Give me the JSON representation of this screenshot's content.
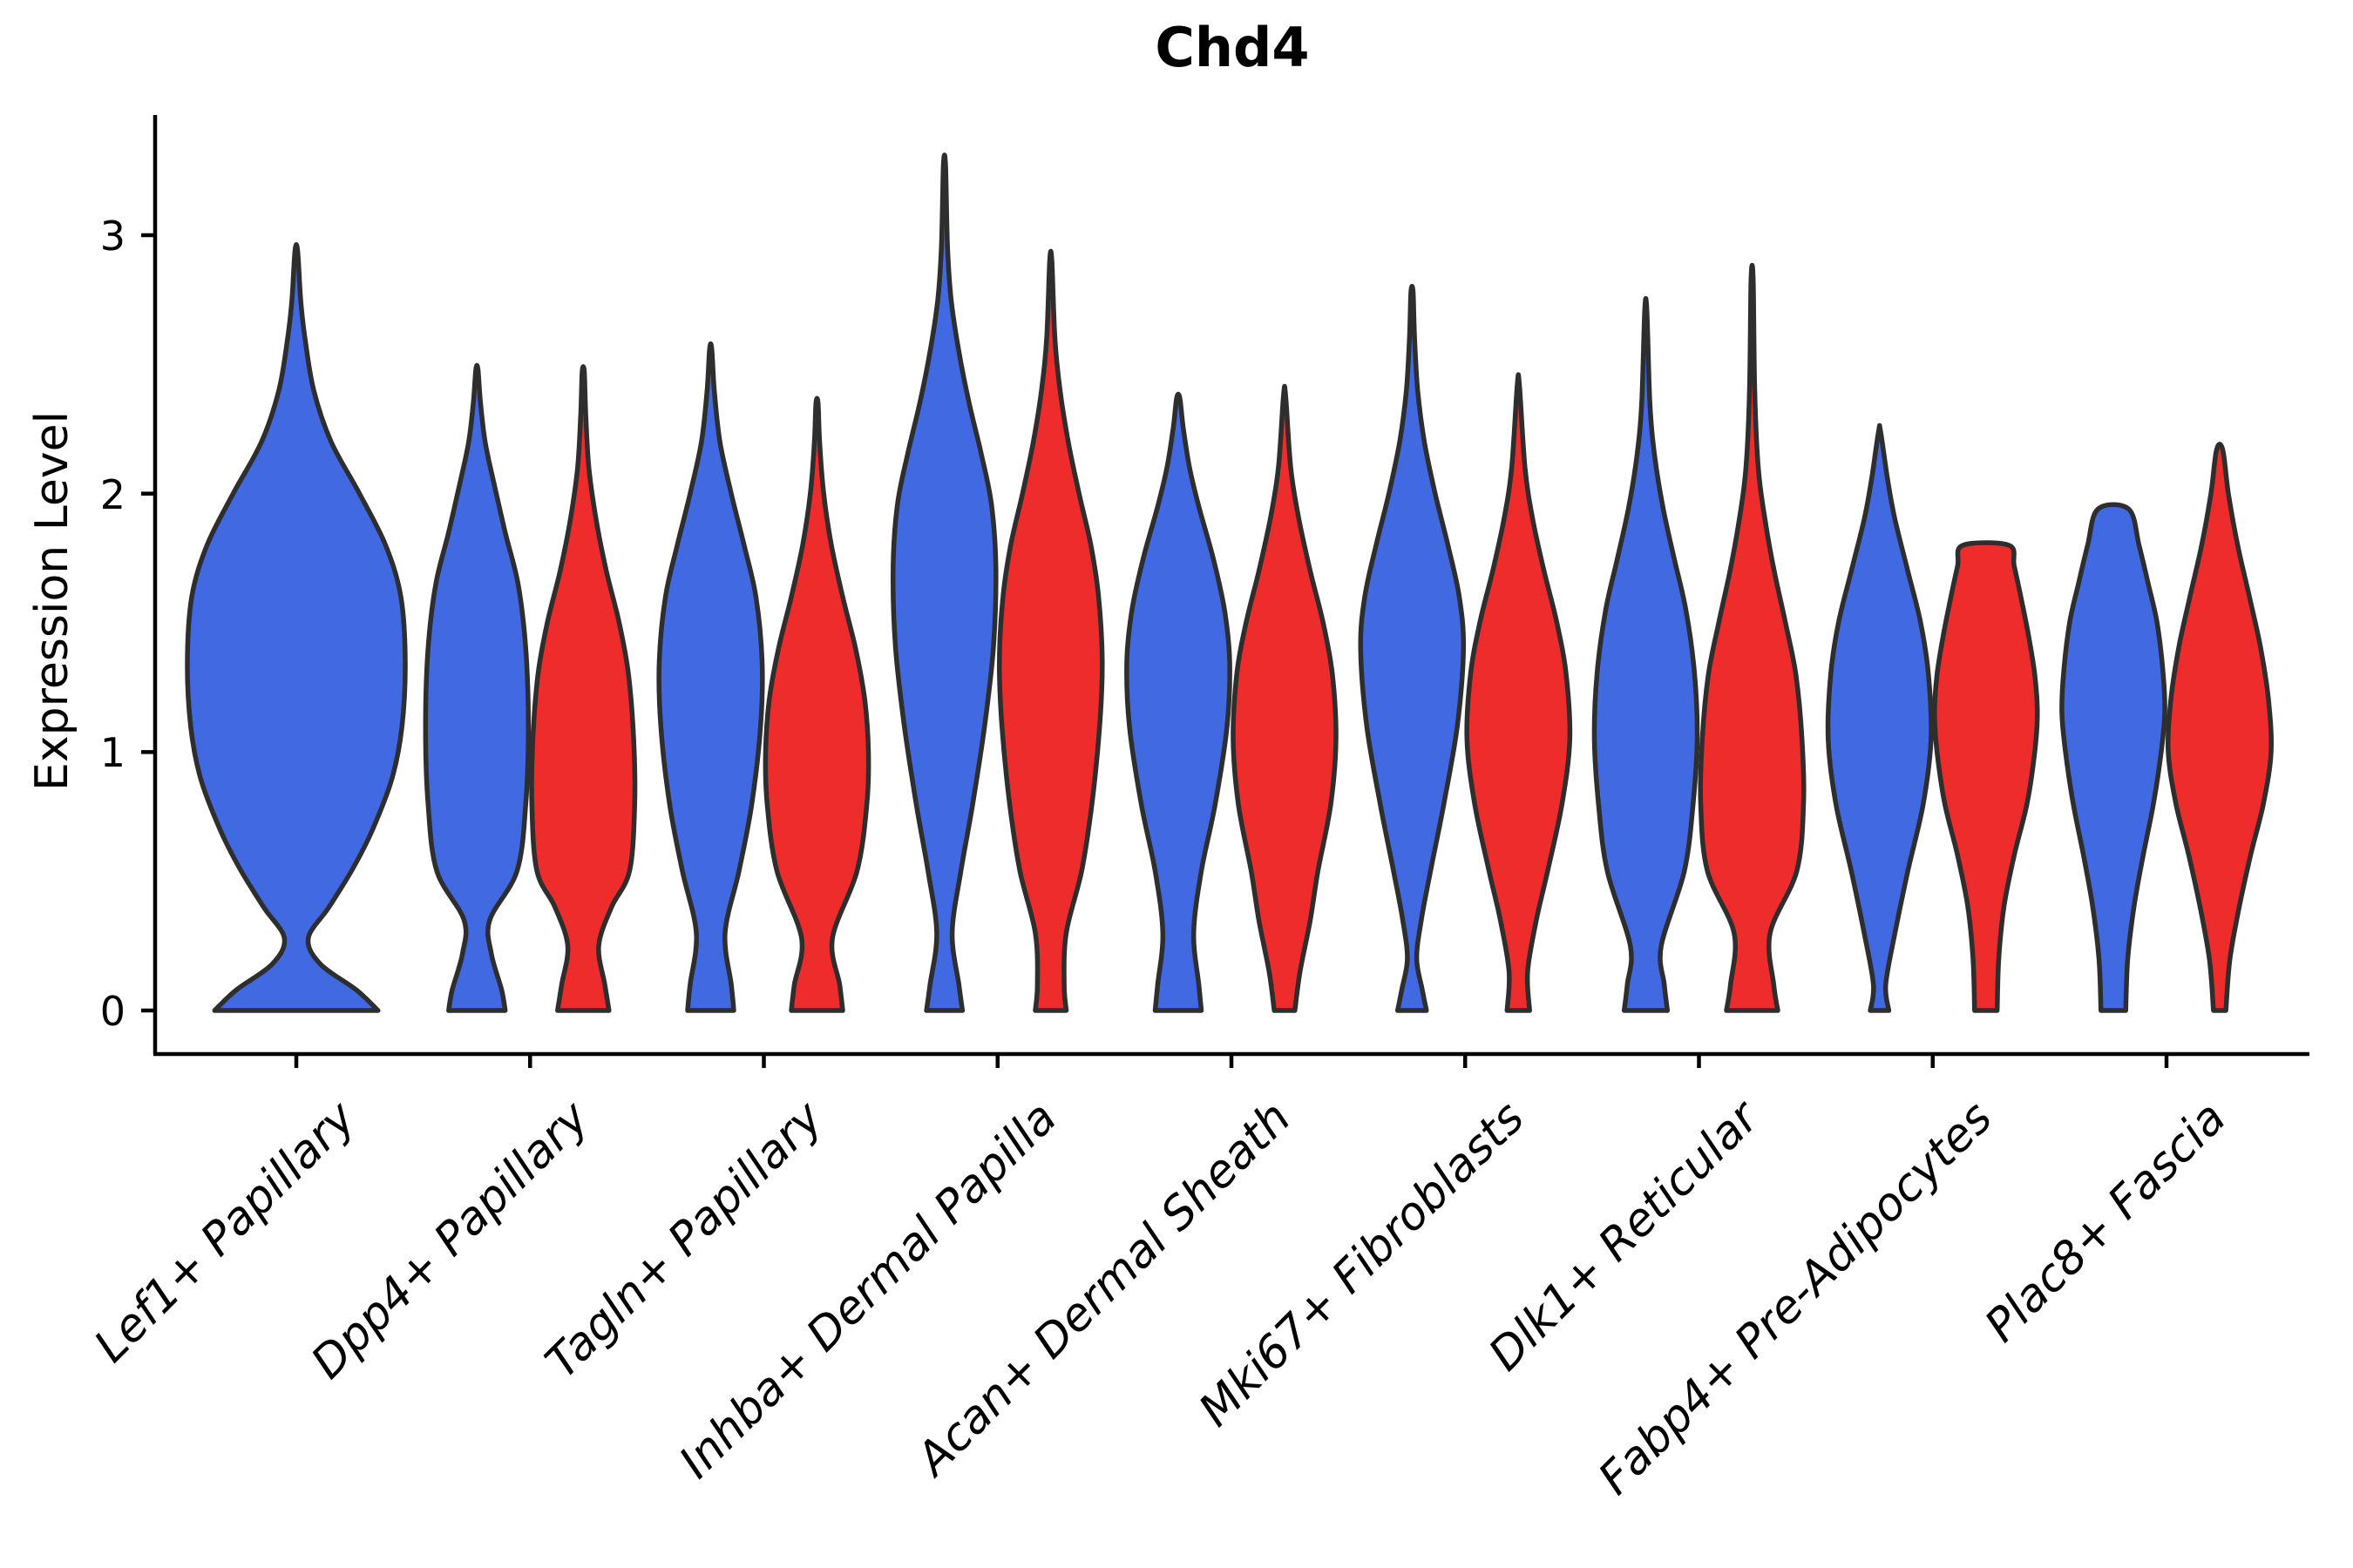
{
  "title": "Chd4",
  "colors": {
    "blue_fill": "#4169E1",
    "red_fill": "#EE2C2C",
    "outline": "#2E2E2E",
    "axis": "#000000"
  },
  "y_axis": {
    "label": "Expression Level",
    "tick_labels": [
      "0",
      "1",
      "2",
      "3"
    ]
  },
  "chart_data": {
    "type": "violin",
    "title": "Chd4",
    "xlabel": "",
    "ylabel": "Expression Level",
    "ylim": [
      0,
      3.4
    ],
    "yticks": [
      0,
      1,
      2,
      3
    ],
    "grid": false,
    "legend": "none visible; two fill groups (blue, red) per category, category 1 has blue only",
    "categories": [
      "Lef1+ Papillary",
      "Dpp4+ Papillary",
      "Tagln+ Papillary",
      "Inhba+ Dermal Papilla",
      "Acan+ Dermal Sheath",
      "Mki67+ Fibroblasts",
      "Dlk1+ Reticular",
      "Fabp4+ Pre-Adipocytes",
      "Plac8+ Fascia"
    ],
    "violins": [
      {
        "category_index": 0,
        "color": "blue",
        "dodge": "center",
        "max_expression": 2.94,
        "flat_top": false,
        "profile": [
          [
            0,
            0.75
          ],
          [
            0.08,
            0.55
          ],
          [
            0.18,
            0.22
          ],
          [
            0.28,
            0.11
          ],
          [
            0.4,
            0.3
          ],
          [
            0.55,
            0.52
          ],
          [
            0.7,
            0.7
          ],
          [
            0.9,
            0.88
          ],
          [
            1.1,
            0.97
          ],
          [
            1.35,
            1.0
          ],
          [
            1.6,
            0.96
          ],
          [
            1.8,
            0.82
          ],
          [
            2.0,
            0.58
          ],
          [
            2.2,
            0.32
          ],
          [
            2.4,
            0.16
          ],
          [
            2.6,
            0.08
          ],
          [
            2.75,
            0.04
          ],
          [
            2.94,
            0.012
          ]
        ]
      },
      {
        "category_index": 1,
        "color": "blue",
        "dodge": "left",
        "max_expression": 2.48,
        "flat_top": false,
        "profile": [
          [
            0,
            0.55
          ],
          [
            0.08,
            0.48
          ],
          [
            0.22,
            0.28
          ],
          [
            0.35,
            0.25
          ],
          [
            0.54,
            0.78
          ],
          [
            0.8,
            0.95
          ],
          [
            1.1,
            1.0
          ],
          [
            1.4,
            0.95
          ],
          [
            1.65,
            0.8
          ],
          [
            1.85,
            0.55
          ],
          [
            2.05,
            0.32
          ],
          [
            2.2,
            0.16
          ],
          [
            2.35,
            0.07
          ],
          [
            2.48,
            0.012
          ]
        ]
      },
      {
        "category_index": 1,
        "color": "red",
        "dodge": "right",
        "max_expression": 2.47,
        "flat_top": false,
        "profile": [
          [
            0,
            0.5
          ],
          [
            0.1,
            0.42
          ],
          [
            0.25,
            0.3
          ],
          [
            0.4,
            0.55
          ],
          [
            0.54,
            0.9
          ],
          [
            0.8,
            1.0
          ],
          [
            1.05,
            0.98
          ],
          [
            1.3,
            0.88
          ],
          [
            1.5,
            0.7
          ],
          [
            1.7,
            0.45
          ],
          [
            1.9,
            0.25
          ],
          [
            2.1,
            0.11
          ],
          [
            2.3,
            0.05
          ],
          [
            2.47,
            0.012
          ]
        ]
      },
      {
        "category_index": 2,
        "color": "blue",
        "dodge": "left",
        "max_expression": 2.56,
        "flat_top": false,
        "profile": [
          [
            0,
            0.45
          ],
          [
            0.1,
            0.4
          ],
          [
            0.3,
            0.28
          ],
          [
            0.54,
            0.55
          ],
          [
            0.8,
            0.8
          ],
          [
            1.1,
            0.97
          ],
          [
            1.35,
            1.0
          ],
          [
            1.6,
            0.88
          ],
          [
            1.8,
            0.65
          ],
          [
            2.0,
            0.4
          ],
          [
            2.2,
            0.18
          ],
          [
            2.4,
            0.07
          ],
          [
            2.56,
            0.012
          ]
        ]
      },
      {
        "category_index": 2,
        "color": "red",
        "dodge": "right",
        "max_expression": 2.35,
        "flat_top": false,
        "profile": [
          [
            0,
            0.5
          ],
          [
            0.1,
            0.44
          ],
          [
            0.28,
            0.3
          ],
          [
            0.54,
            0.78
          ],
          [
            0.8,
            0.97
          ],
          [
            1.0,
            1.0
          ],
          [
            1.2,
            0.93
          ],
          [
            1.4,
            0.75
          ],
          [
            1.6,
            0.5
          ],
          [
            1.8,
            0.28
          ],
          [
            2.0,
            0.13
          ],
          [
            2.2,
            0.05
          ],
          [
            2.35,
            0.012
          ]
        ]
      },
      {
        "category_index": 3,
        "color": "blue",
        "dodge": "left",
        "max_expression": 3.27,
        "flat_top": false,
        "profile": [
          [
            0,
            0.35
          ],
          [
            0.1,
            0.28
          ],
          [
            0.3,
            0.15
          ],
          [
            0.54,
            0.32
          ],
          [
            0.8,
            0.55
          ],
          [
            1.1,
            0.78
          ],
          [
            1.4,
            0.95
          ],
          [
            1.7,
            1.0
          ],
          [
            1.95,
            0.92
          ],
          [
            2.15,
            0.72
          ],
          [
            2.35,
            0.48
          ],
          [
            2.55,
            0.28
          ],
          [
            2.75,
            0.13
          ],
          [
            2.95,
            0.06
          ],
          [
            3.27,
            0.012
          ]
        ]
      },
      {
        "category_index": 3,
        "color": "red",
        "dodge": "right",
        "max_expression": 2.9,
        "flat_top": false,
        "profile": [
          [
            0,
            0.3
          ],
          [
            0.1,
            0.26
          ],
          [
            0.3,
            0.3
          ],
          [
            0.54,
            0.6
          ],
          [
            0.8,
            0.8
          ],
          [
            1.1,
            0.95
          ],
          [
            1.35,
            1.0
          ],
          [
            1.6,
            0.93
          ],
          [
            1.8,
            0.78
          ],
          [
            2.0,
            0.55
          ],
          [
            2.2,
            0.34
          ],
          [
            2.4,
            0.18
          ],
          [
            2.6,
            0.08
          ],
          [
            2.9,
            0.012
          ]
        ]
      },
      {
        "category_index": 4,
        "color": "blue",
        "dodge": "left",
        "max_expression": 2.37,
        "flat_top": false,
        "profile": [
          [
            0,
            0.45
          ],
          [
            0.1,
            0.4
          ],
          [
            0.3,
            0.3
          ],
          [
            0.54,
            0.45
          ],
          [
            0.8,
            0.72
          ],
          [
            1.1,
            0.95
          ],
          [
            1.35,
            1.0
          ],
          [
            1.55,
            0.9
          ],
          [
            1.75,
            0.68
          ],
          [
            1.95,
            0.4
          ],
          [
            2.1,
            0.22
          ],
          [
            2.25,
            0.1
          ],
          [
            2.37,
            0.03
          ]
        ]
      },
      {
        "category_index": 4,
        "color": "red",
        "dodge": "right",
        "max_expression": 2.38,
        "flat_top": false,
        "profile": [
          [
            0,
            0.2
          ],
          [
            0.15,
            0.3
          ],
          [
            0.35,
            0.5
          ],
          [
            0.54,
            0.65
          ],
          [
            0.8,
            0.9
          ],
          [
            1.05,
            1.0
          ],
          [
            1.3,
            0.93
          ],
          [
            1.5,
            0.75
          ],
          [
            1.7,
            0.5
          ],
          [
            1.9,
            0.28
          ],
          [
            2.1,
            0.12
          ],
          [
            2.38,
            0.012
          ]
        ]
      },
      {
        "category_index": 5,
        "color": "blue",
        "dodge": "left",
        "max_expression": 2.78,
        "flat_top": false,
        "profile": [
          [
            0,
            0.28
          ],
          [
            0.08,
            0.2
          ],
          [
            0.2,
            0.09
          ],
          [
            0.35,
            0.18
          ],
          [
            0.54,
            0.36
          ],
          [
            0.8,
            0.62
          ],
          [
            1.1,
            0.88
          ],
          [
            1.4,
            1.0
          ],
          [
            1.6,
            0.92
          ],
          [
            1.8,
            0.7
          ],
          [
            2.0,
            0.45
          ],
          [
            2.2,
            0.24
          ],
          [
            2.4,
            0.11
          ],
          [
            2.6,
            0.05
          ],
          [
            2.78,
            0.012
          ]
        ]
      },
      {
        "category_index": 5,
        "color": "red",
        "dodge": "right",
        "max_expression": 2.42,
        "flat_top": false,
        "profile": [
          [
            0,
            0.22
          ],
          [
            0.15,
            0.18
          ],
          [
            0.35,
            0.35
          ],
          [
            0.54,
            0.57
          ],
          [
            0.8,
            0.85
          ],
          [
            1.05,
            1.0
          ],
          [
            1.3,
            0.93
          ],
          [
            1.5,
            0.75
          ],
          [
            1.7,
            0.5
          ],
          [
            1.9,
            0.28
          ],
          [
            2.1,
            0.13
          ],
          [
            2.42,
            0.012
          ]
        ]
      },
      {
        "category_index": 6,
        "color": "blue",
        "dodge": "left",
        "max_expression": 2.71,
        "flat_top": false,
        "profile": [
          [
            0,
            0.42
          ],
          [
            0.1,
            0.36
          ],
          [
            0.25,
            0.3
          ],
          [
            0.54,
            0.75
          ],
          [
            0.8,
            0.92
          ],
          [
            1.05,
            1.0
          ],
          [
            1.3,
            0.95
          ],
          [
            1.55,
            0.78
          ],
          [
            1.75,
            0.55
          ],
          [
            1.95,
            0.33
          ],
          [
            2.15,
            0.17
          ],
          [
            2.35,
            0.08
          ],
          [
            2.71,
            0.012
          ]
        ]
      },
      {
        "category_index": 6,
        "color": "red",
        "dodge": "right",
        "max_expression": 2.83,
        "flat_top": false,
        "profile": [
          [
            0,
            0.5
          ],
          [
            0.1,
            0.42
          ],
          [
            0.3,
            0.35
          ],
          [
            0.54,
            0.87
          ],
          [
            0.8,
            1.0
          ],
          [
            1.05,
            0.97
          ],
          [
            1.3,
            0.85
          ],
          [
            1.5,
            0.65
          ],
          [
            1.7,
            0.43
          ],
          [
            1.9,
            0.25
          ],
          [
            2.1,
            0.12
          ],
          [
            2.4,
            0.05
          ],
          [
            2.83,
            0.012
          ]
        ]
      },
      {
        "category_index": 7,
        "color": "blue",
        "dodge": "left",
        "max_expression": 2.24,
        "flat_top": false,
        "profile": [
          [
            0,
            0.18
          ],
          [
            0.1,
            0.12
          ],
          [
            0.3,
            0.3
          ],
          [
            0.54,
            0.55
          ],
          [
            0.8,
            0.85
          ],
          [
            1.05,
            1.0
          ],
          [
            1.3,
            0.95
          ],
          [
            1.5,
            0.8
          ],
          [
            1.7,
            0.55
          ],
          [
            1.9,
            0.3
          ],
          [
            2.05,
            0.16
          ],
          [
            2.24,
            0.02
          ]
        ]
      },
      {
        "category_index": 7,
        "color": "red",
        "dodge": "right",
        "max_expression": 1.8,
        "flat_top": true,
        "profile": [
          [
            0,
            0.22
          ],
          [
            0.2,
            0.25
          ],
          [
            0.4,
            0.35
          ],
          [
            0.6,
            0.55
          ],
          [
            0.8,
            0.8
          ],
          [
            1.0,
            0.95
          ],
          [
            1.15,
            1.0
          ],
          [
            1.3,
            0.95
          ],
          [
            1.45,
            0.83
          ],
          [
            1.6,
            0.68
          ],
          [
            1.72,
            0.55
          ],
          [
            1.8,
            0.45
          ]
        ]
      },
      {
        "category_index": 8,
        "color": "blue",
        "dodge": "left",
        "max_expression": 1.94,
        "flat_top": true,
        "profile": [
          [
            0,
            0.24
          ],
          [
            0.2,
            0.28
          ],
          [
            0.4,
            0.4
          ],
          [
            0.6,
            0.58
          ],
          [
            0.8,
            0.78
          ],
          [
            1.0,
            0.93
          ],
          [
            1.15,
            1.0
          ],
          [
            1.3,
            0.97
          ],
          [
            1.5,
            0.85
          ],
          [
            1.65,
            0.68
          ],
          [
            1.8,
            0.5
          ],
          [
            1.94,
            0.3
          ]
        ]
      },
      {
        "category_index": 8,
        "color": "red",
        "dodge": "right",
        "max_expression": 2.17,
        "flat_top": true,
        "profile": [
          [
            0,
            0.12
          ],
          [
            0.2,
            0.2
          ],
          [
            0.4,
            0.38
          ],
          [
            0.6,
            0.6
          ],
          [
            0.8,
            0.85
          ],
          [
            1.0,
            1.0
          ],
          [
            1.2,
            0.95
          ],
          [
            1.4,
            0.8
          ],
          [
            1.6,
            0.58
          ],
          [
            1.8,
            0.35
          ],
          [
            2.0,
            0.17
          ],
          [
            2.17,
            0.06
          ]
        ]
      }
    ]
  }
}
